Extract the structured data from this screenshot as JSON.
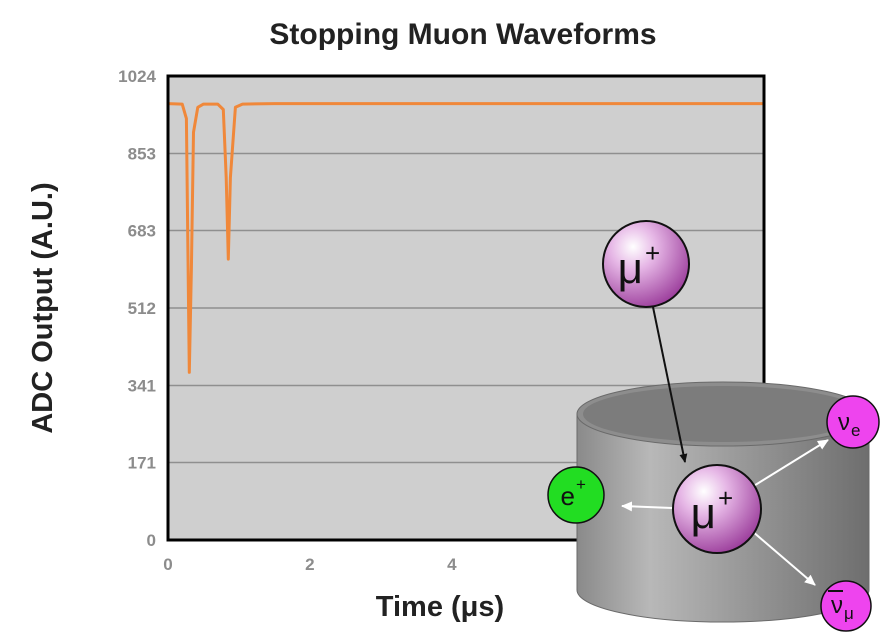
{
  "chart_data": {
    "type": "line",
    "title": "Stopping Muon Waveforms",
    "xlabel": "Time (μs)",
    "ylabel": "ADC Output (A.U.)",
    "xlim": [
      0,
      8.4
    ],
    "ylim": [
      0,
      1024
    ],
    "x_ticks": [
      0,
      2,
      4
    ],
    "x_tick_labels": [
      "0",
      "2",
      "4"
    ],
    "y_ticks": [
      0,
      171,
      341,
      512,
      683,
      853,
      1024
    ],
    "y_tick_labels": [
      "0",
      "171",
      "341",
      "512",
      "683",
      "853",
      "1024"
    ],
    "grid": "horizontal",
    "plot_background": "#cfcfcf",
    "series": [
      {
        "color": "#f0883a",
        "x": [
          0.0,
          0.2,
          0.26,
          0.3,
          0.33,
          0.36,
          0.42,
          0.5,
          0.7,
          0.78,
          0.82,
          0.85,
          0.88,
          0.95,
          1.05,
          1.5,
          2.5,
          4.0,
          5.5,
          7.0,
          8.4
        ],
        "y": [
          963,
          962,
          930,
          370,
          600,
          900,
          955,
          962,
          962,
          950,
          800,
          620,
          800,
          955,
          962,
          963,
          963,
          963,
          963,
          963,
          963
        ]
      }
    ]
  },
  "diagram": {
    "particles": {
      "muon_incoming": {
        "symbol": "μ",
        "superscript": "+"
      },
      "muon_stopped": {
        "symbol": "μ",
        "superscript": "+"
      },
      "positron": {
        "symbol": "e",
        "superscript": "+"
      },
      "electron_neutrino": {
        "symbol": "ν",
        "subscript": "e"
      },
      "muon_antineutrino": {
        "symbol": "ν",
        "subscript": "μ"
      }
    },
    "colors": {
      "muon": "#b052b0",
      "positron": "#22dd22",
      "neutrino": "#ee44ee",
      "detector": "#8a8a8a"
    }
  }
}
